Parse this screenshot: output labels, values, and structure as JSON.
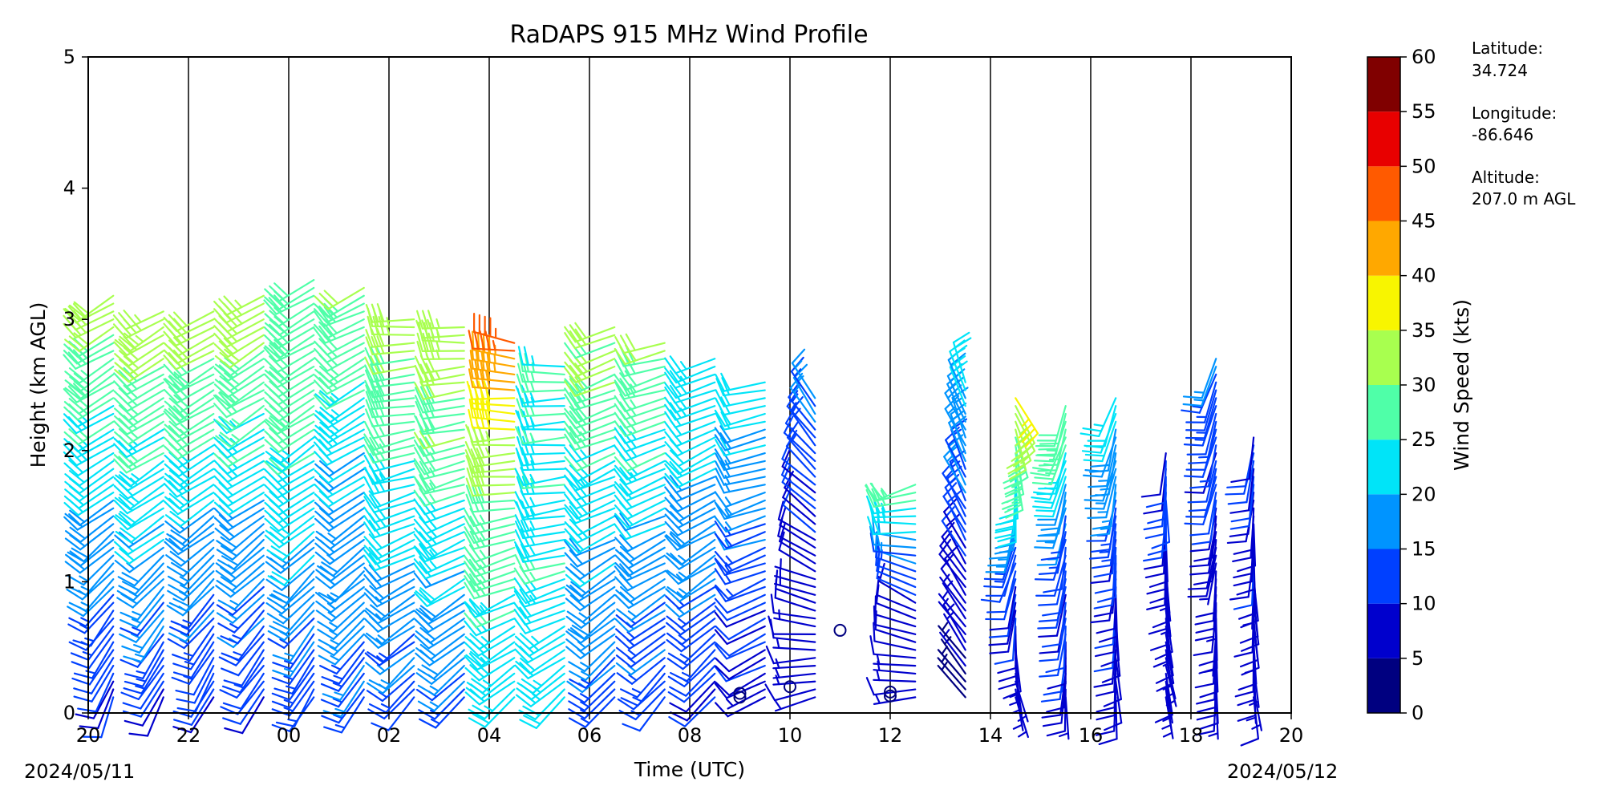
{
  "chart_data": {
    "type": "wind_barb_profile",
    "title": "RaDAPS 915 MHz Wind Profile",
    "xlabel": "Time (UTC)",
    "ylabel": "Height (km AGL)",
    "date_start": "2024/05/11",
    "date_end": "2024/05/12",
    "x_tick_labels": [
      "20",
      "22",
      "00",
      "02",
      "04",
      "06",
      "08",
      "10",
      "12",
      "14",
      "16",
      "18",
      "20"
    ],
    "y_ticks": [
      0,
      1,
      2,
      3,
      4,
      5
    ],
    "ylim": [
      0,
      5
    ],
    "colorbar": {
      "label": "Wind Speed (kts)",
      "ticks": [
        0,
        5,
        10,
        15,
        20,
        25,
        30,
        35,
        40,
        45,
        50,
        55,
        60
      ],
      "colors": [
        "#000080",
        "#0000cd",
        "#0040ff",
        "#0094ff",
        "#00e4f8",
        "#4fffa8",
        "#a8ff4f",
        "#f8f500",
        "#ffa800",
        "#ff5a00",
        "#e80000",
        "#800000"
      ]
    },
    "station_info": {
      "latitude_label": "Latitude:",
      "latitude": "34.724",
      "longitude_label": "Longitude:",
      "longitude": "-86.646",
      "altitude_label": "Altitude:",
      "altitude": "207.0 m AGL"
    },
    "profiles": [
      {
        "time": "20:30",
        "top_km": 3.2,
        "low_dir": 200,
        "low_spd": 8,
        "mid_dir": 235,
        "mid_spd": 20,
        "top_dir": 240,
        "top_spd": 32
      },
      {
        "time": "21:30",
        "top_km": 3.1,
        "low_dir": 205,
        "low_spd": 9,
        "mid_dir": 235,
        "mid_spd": 21,
        "top_dir": 240,
        "top_spd": 33
      },
      {
        "time": "22:30",
        "top_km": 3.1,
        "low_dir": 205,
        "low_spd": 9,
        "mid_dir": 235,
        "mid_spd": 20,
        "top_dir": 240,
        "top_spd": 33
      },
      {
        "time": "23:30",
        "top_km": 3.2,
        "low_dir": 210,
        "low_spd": 10,
        "mid_dir": 235,
        "mid_spd": 20,
        "top_dir": 240,
        "top_spd": 34
      },
      {
        "time": "00:30",
        "top_km": 3.35,
        "low_dir": 210,
        "low_spd": 11,
        "mid_dir": 235,
        "mid_spd": 23,
        "top_dir": 240,
        "top_spd": 30
      },
      {
        "time": "01:30",
        "top_km": 3.25,
        "low_dir": 215,
        "low_spd": 14,
        "mid_dir": 235,
        "mid_spd": 19,
        "top_dir": 245,
        "top_spd": 30
      },
      {
        "time": "02:30",
        "top_km": 3.0,
        "low_dir": 220,
        "low_spd": 12,
        "mid_dir": 250,
        "mid_spd": 22,
        "top_dir": 270,
        "top_spd": 33
      },
      {
        "time": "03:30",
        "top_km": 2.95,
        "low_dir": 220,
        "low_spd": 13,
        "mid_dir": 250,
        "mid_spd": 24,
        "top_dir": 270,
        "top_spd": 35
      },
      {
        "time": "04:30",
        "top_km": 2.85,
        "low_dir": 225,
        "low_spd": 22,
        "mid_dir": 260,
        "mid_spd": 26,
        "top_dir": 280,
        "top_spd": 47
      },
      {
        "time": "05:30",
        "top_km": 2.65,
        "low_dir": 225,
        "low_spd": 22,
        "mid_dir": 260,
        "mid_spd": 24,
        "top_dir": 270,
        "top_spd": 25
      },
      {
        "time": "06:30",
        "top_km": 2.95,
        "low_dir": 220,
        "low_spd": 12,
        "mid_dir": 245,
        "mid_spd": 22,
        "top_dir": 250,
        "top_spd": 32
      },
      {
        "time": "07:30",
        "top_km": 2.85,
        "low_dir": 220,
        "low_spd": 11,
        "mid_dir": 245,
        "mid_spd": 20,
        "top_dir": 255,
        "top_spd": 30
      },
      {
        "time": "08:30",
        "top_km": 2.75,
        "low_dir": 220,
        "low_spd": 9,
        "mid_dir": 240,
        "mid_spd": 18,
        "top_dir": 250,
        "top_spd": 24
      },
      {
        "time": "09:30",
        "top_km": 2.55,
        "low_dir": 240,
        "low_spd": 7,
        "mid_dir": 250,
        "mid_spd": 14,
        "top_dir": 260,
        "top_spd": 22
      },
      {
        "time": "10:30",
        "top_km": 2.4,
        "low_dir": 250,
        "low_spd": 6,
        "mid_dir": 300,
        "mid_spd": 8,
        "top_dir": 330,
        "top_spd": 16
      },
      {
        "time": "12:30",
        "top_km": 1.75,
        "low_dir": 260,
        "low_spd": 7,
        "mid_dir": 300,
        "mid_spd": 9,
        "top_dir": 250,
        "top_spd": 28
      },
      {
        "time": "13:30",
        "top_km": 2.55,
        "low_dir": 320,
        "low_spd": 4,
        "mid_dir": 330,
        "mid_spd": 10,
        "top_dir": 340,
        "top_spd": 22
      },
      {
        "time": "14:30",
        "top_km": 2.45,
        "low_dir": 160,
        "low_spd": 5,
        "mid_dir": 200,
        "mid_spd": 12,
        "top_dir": 150,
        "top_spd": 36
      },
      {
        "time": "15:30",
        "top_km": 2.35,
        "low_dir": 180,
        "low_spd": 8,
        "mid_dir": 190,
        "mid_spd": 11,
        "top_dir": 200,
        "top_spd": 29
      },
      {
        "time": "16:30",
        "top_km": 2.45,
        "low_dir": 175,
        "low_spd": 8,
        "mid_dir": 185,
        "mid_spd": 10,
        "top_dir": 200,
        "top_spd": 22
      },
      {
        "time": "17:30",
        "top_km": 2.0,
        "low_dir": 170,
        "low_spd": 7,
        "mid_dir": 175,
        "mid_spd": 8,
        "top_dir": 185,
        "top_spd": 11
      },
      {
        "time": "18:30",
        "top_km": 2.75,
        "low_dir": 175,
        "low_spd": 8,
        "mid_dir": 190,
        "mid_spd": 9,
        "top_dir": 200,
        "top_spd": 14
      },
      {
        "time": "19:15",
        "top_km": 2.1,
        "low_dir": 170,
        "low_spd": 7,
        "mid_dir": 180,
        "mid_spd": 9,
        "top_dir": 190,
        "top_spd": 11
      }
    ],
    "calm_points": [
      {
        "time": "09:00",
        "height_km": 0.12
      },
      {
        "time": "09:00",
        "height_km": 0.15
      },
      {
        "time": "10:00",
        "height_km": 0.2
      },
      {
        "time": "11:00",
        "height_km": 0.63
      },
      {
        "time": "12:00",
        "height_km": 0.13
      },
      {
        "time": "12:00",
        "height_km": 0.16
      }
    ]
  }
}
